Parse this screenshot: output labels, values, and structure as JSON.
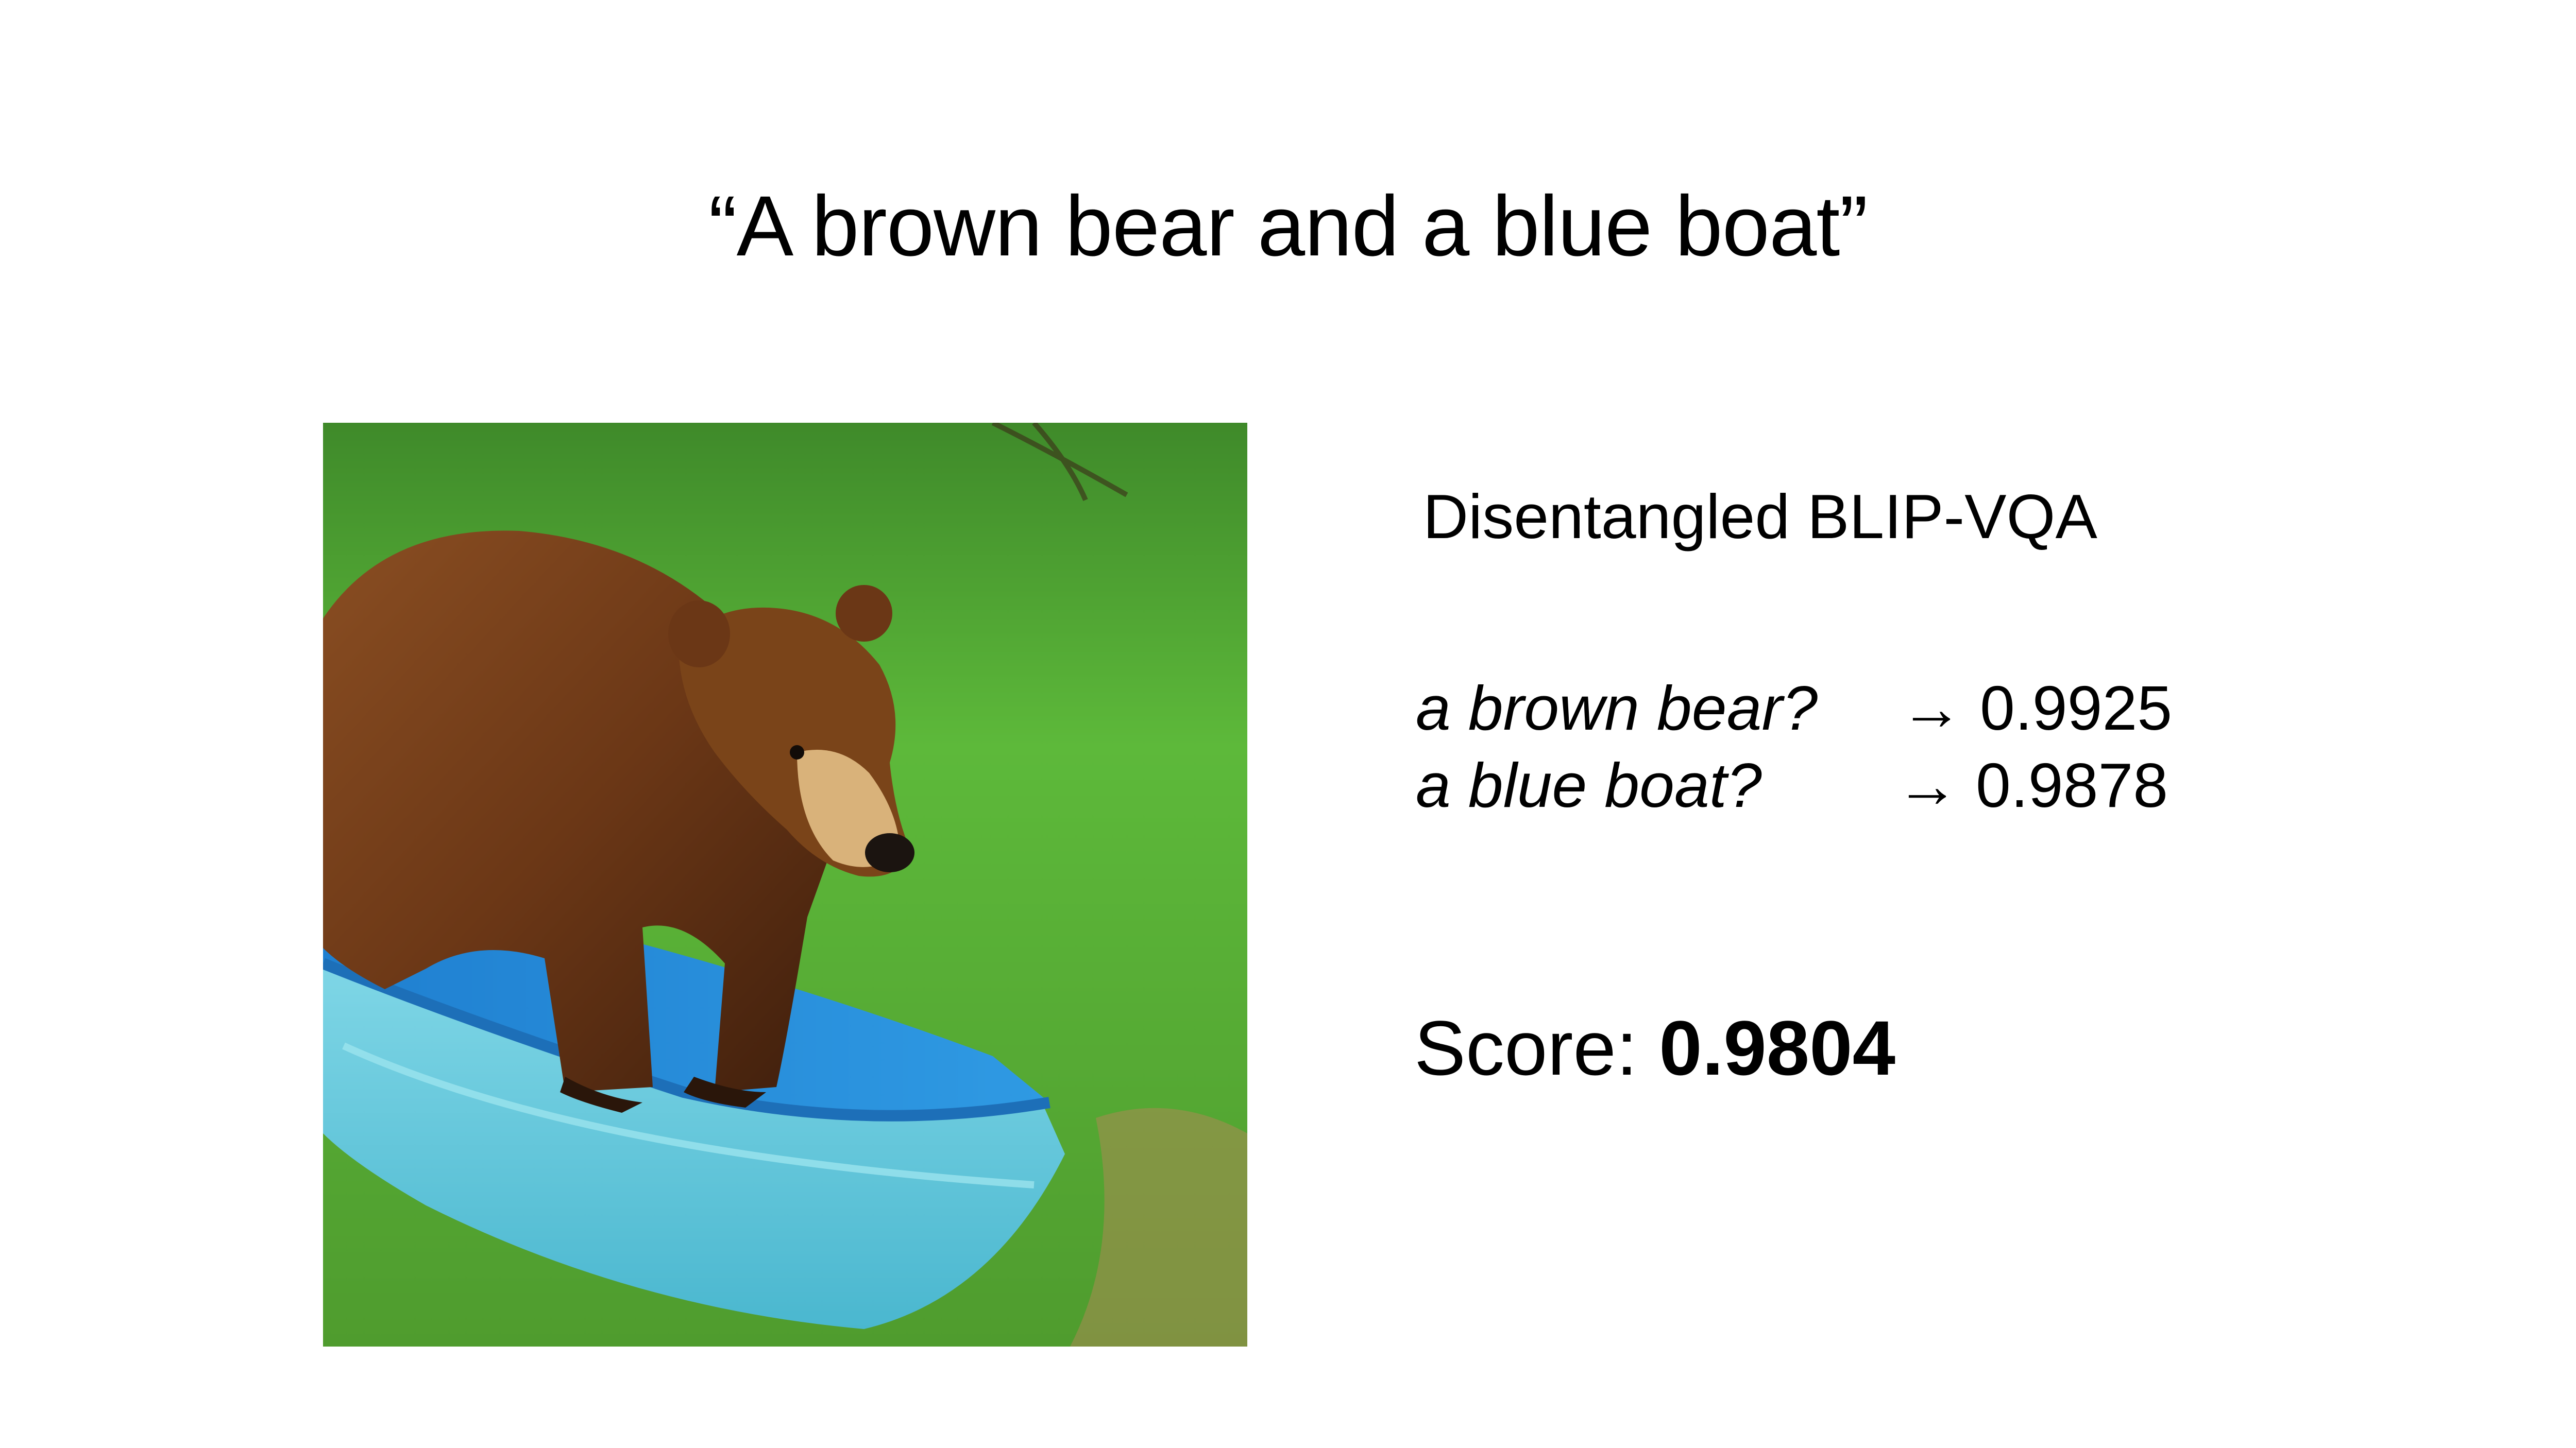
{
  "prompt": "“A brown bear and a blue boat”",
  "image": {
    "subject_icon": "bear-in-blue-boat-photo"
  },
  "method_title": "Disentangled BLIP-VQA",
  "qa": [
    {
      "question": "a brown bear?",
      "arrow": "→",
      "score": "0.9925"
    },
    {
      "question": "a blue boat?",
      "arrow": "→",
      "score": "0.9878"
    }
  ],
  "final": {
    "label": "Score: ",
    "value": "0.9804"
  }
}
